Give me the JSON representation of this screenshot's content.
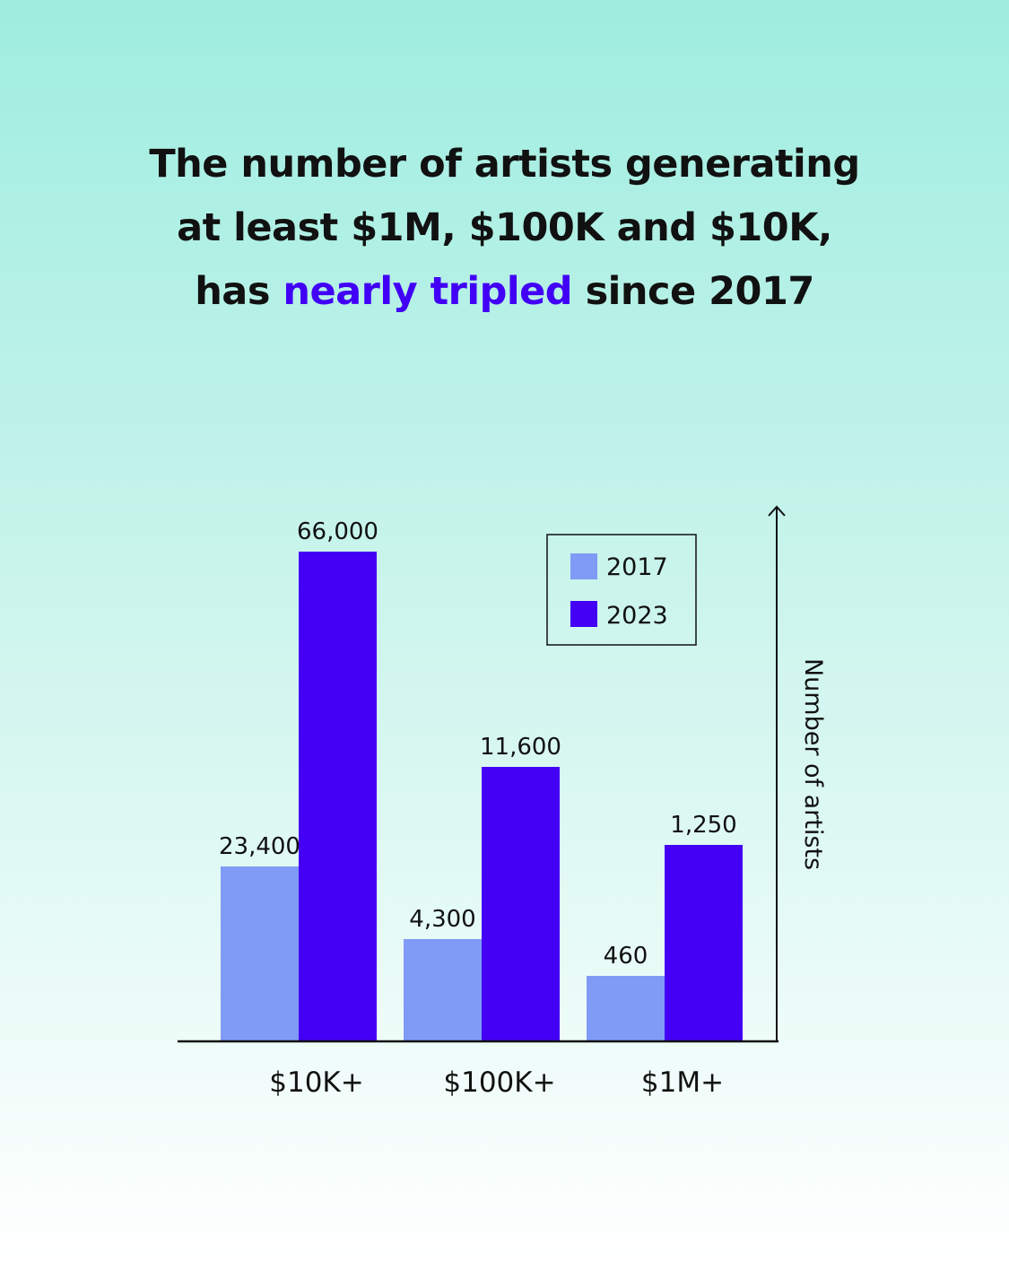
{
  "headline": {
    "line1": "The number of artists generating",
    "line2": "at least $1M, $100K and $10K,",
    "line3_before": "has ",
    "line3_accent": "nearly tripled",
    "line3_after": " since 2017"
  },
  "colors": {
    "accent": "#4100f5",
    "series_2017": "#7f9bf5",
    "series_2023": "#4300f5",
    "axis": "#111111"
  },
  "chart_data": {
    "type": "bar",
    "categories": [
      "$10K+",
      "$100K+",
      "$1M+"
    ],
    "series": [
      {
        "name": "2017",
        "values": [
          23400,
          4300,
          460
        ],
        "labels": [
          "23,400",
          "4,300",
          "460"
        ]
      },
      {
        "name": "2023",
        "values": [
          66000,
          11600,
          1250
        ],
        "labels": [
          "66,000",
          "11,600",
          "1,250"
        ]
      }
    ],
    "title": "",
    "xlabel": "",
    "ylabel": "Number of artists",
    "y_axis_side": "right",
    "y_scale": "nonlinear",
    "grid": false,
    "legend": "top-right"
  }
}
